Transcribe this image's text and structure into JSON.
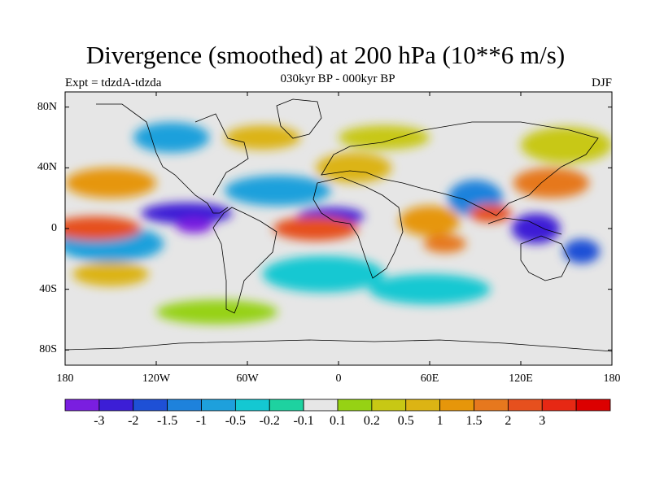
{
  "title": "Divergence (smoothed) at 200 hPa (10**6 m/s)",
  "subtitle": "030kyr BP - 000kyr BP",
  "experiment": "Expt = tdzdA-tdzda",
  "season": "DJF",
  "map": {
    "lon_range": [
      -180,
      180
    ],
    "lat_range": [
      -90,
      90
    ],
    "lat_ticks": [
      {
        "value": 80,
        "label": "80N"
      },
      {
        "value": 40,
        "label": "40N"
      },
      {
        "value": 0,
        "label": "0"
      },
      {
        "value": -40,
        "label": "40S"
      },
      {
        "value": -80,
        "label": "80S"
      }
    ],
    "lon_ticks": [
      {
        "value": -180,
        "label": "180"
      },
      {
        "value": -120,
        "label": "120W"
      },
      {
        "value": -60,
        "label": "60W"
      },
      {
        "value": 0,
        "label": "0"
      },
      {
        "value": 60,
        "label": "60E"
      },
      {
        "value": 120,
        "label": "120E"
      },
      {
        "value": 180,
        "label": "180"
      }
    ]
  },
  "colorbar": {
    "colors": [
      "#7a1ee0",
      "#3c1ed6",
      "#1e50d6",
      "#1e82dc",
      "#1ea0dc",
      "#14c8d2",
      "#1ed2a0",
      "#e6e6e6",
      "#96d214",
      "#c8c814",
      "#dcb414",
      "#e6960a",
      "#e6781e",
      "#e6501e",
      "#e62814",
      "#dc0000"
    ],
    "labels": [
      "-3",
      "-2",
      "-1.5",
      "-1",
      "-0.5",
      "-0.2",
      "-0.1",
      "0.1",
      "0.2",
      "0.5",
      "1",
      "1.5",
      "2",
      "3"
    ]
  },
  "blobs": [
    {
      "lon": -100,
      "lat": 10,
      "rx": 30,
      "ry": 7,
      "level": 1
    },
    {
      "lon": -95,
      "lat": 2,
      "rx": 12,
      "ry": 5,
      "level": 0
    },
    {
      "lon": -5,
      "lat": 8,
      "rx": 22,
      "ry": 6,
      "level": 1
    },
    {
      "lon": 130,
      "lat": 0,
      "rx": 16,
      "ry": 10,
      "level": 1
    },
    {
      "lon": 160,
      "lat": -15,
      "rx": 12,
      "ry": 8,
      "level": 2
    },
    {
      "lon": -40,
      "lat": 25,
      "rx": 35,
      "ry": 10,
      "level": 4
    },
    {
      "lon": 90,
      "lat": 20,
      "rx": 18,
      "ry": 12,
      "level": 3
    },
    {
      "lon": -110,
      "lat": 60,
      "rx": 25,
      "ry": 10,
      "level": 4
    },
    {
      "lon": -150,
      "lat": -10,
      "rx": 35,
      "ry": 12,
      "level": 4
    },
    {
      "lon": 60,
      "lat": -40,
      "rx": 40,
      "ry": 10,
      "level": 5
    },
    {
      "lon": -10,
      "lat": -30,
      "rx": 40,
      "ry": 12,
      "level": 5
    },
    {
      "lon": -160,
      "lat": 0,
      "rx": 30,
      "ry": 8,
      "level": 13
    },
    {
      "lon": -15,
      "lat": 0,
      "rx": 28,
      "ry": 8,
      "level": 13
    },
    {
      "lon": 100,
      "lat": 10,
      "rx": 14,
      "ry": 6,
      "level": 13
    },
    {
      "lon": 60,
      "lat": 5,
      "rx": 20,
      "ry": 10,
      "level": 11
    },
    {
      "lon": -150,
      "lat": 30,
      "rx": 30,
      "ry": 10,
      "level": 11
    },
    {
      "lon": 140,
      "lat": 30,
      "rx": 25,
      "ry": 10,
      "level": 12
    },
    {
      "lon": 70,
      "lat": -10,
      "rx": 14,
      "ry": 6,
      "level": 12
    },
    {
      "lon": -150,
      "lat": -30,
      "rx": 25,
      "ry": 8,
      "level": 10
    },
    {
      "lon": -50,
      "lat": 60,
      "rx": 25,
      "ry": 8,
      "level": 10
    },
    {
      "lon": 30,
      "lat": 60,
      "rx": 30,
      "ry": 8,
      "level": 9
    },
    {
      "lon": -80,
      "lat": -55,
      "rx": 40,
      "ry": 8,
      "level": 8
    },
    {
      "lon": 150,
      "lat": 55,
      "rx": 30,
      "ry": 12,
      "level": 9
    },
    {
      "lon": 10,
      "lat": 40,
      "rx": 25,
      "ry": 10,
      "level": 10
    }
  ]
}
